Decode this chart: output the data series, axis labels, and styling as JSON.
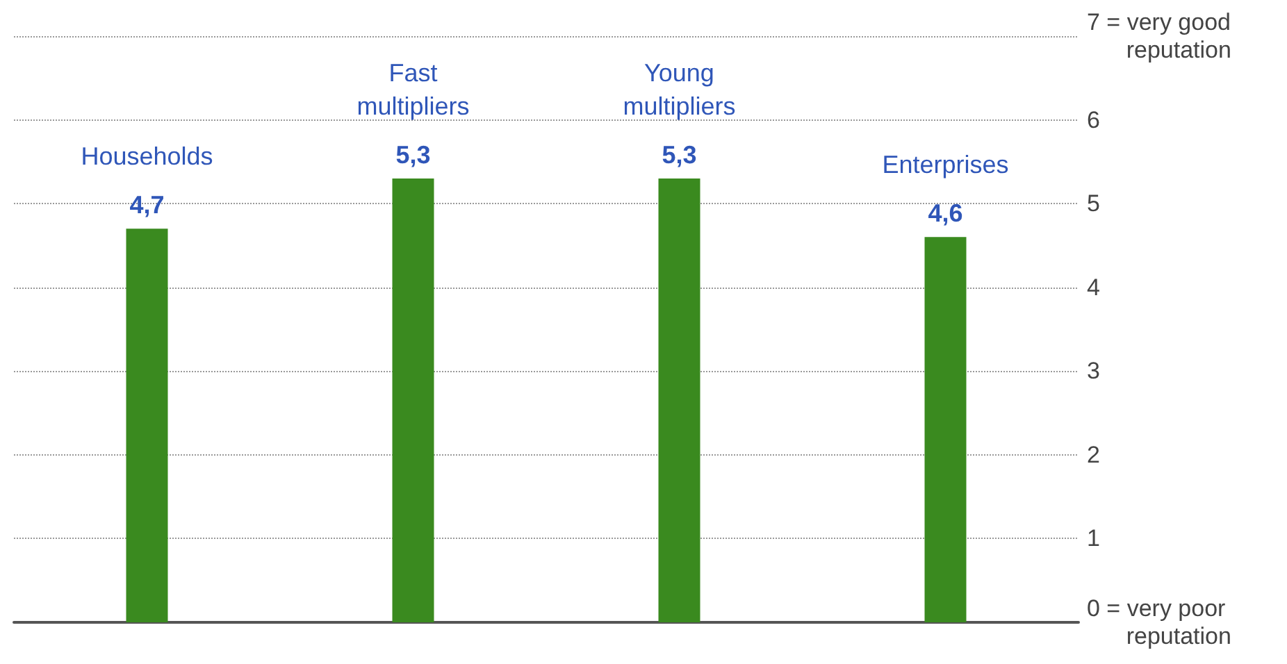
{
  "chart_data": {
    "type": "bar",
    "categories": [
      "Households",
      "Fast multipliers",
      "Young multipliers",
      "Enterprises"
    ],
    "values": [
      4.7,
      5.3,
      5.3,
      4.6
    ],
    "value_labels": [
      "4,7",
      "5,3",
      "5,3",
      "4,6"
    ],
    "color": "#3a8a1f",
    "ylim": [
      0,
      7
    ],
    "yticks": [
      {
        "value": 0,
        "label": "0 = very poor reputation"
      },
      1,
      2,
      3,
      4,
      5,
      6,
      {
        "value": 7,
        "label": "7 = very good reputation"
      }
    ],
    "grid": "y"
  }
}
